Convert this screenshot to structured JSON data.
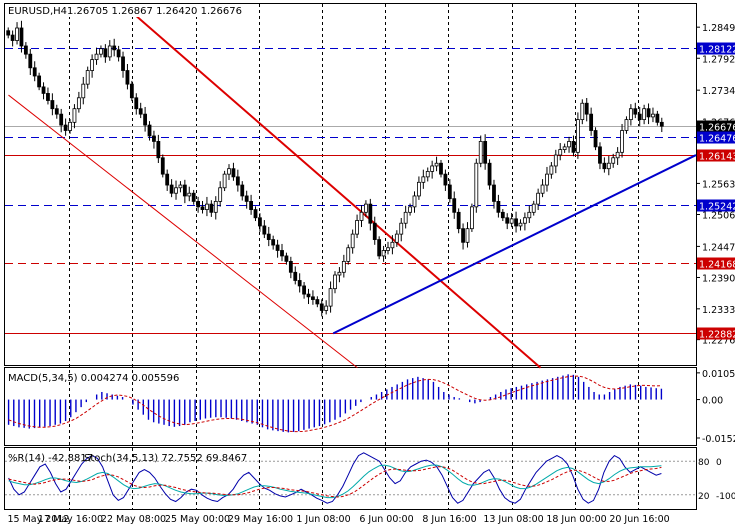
{
  "header": {
    "symbol": "EURUSD,H4",
    "ohlc": "1.26705 1.26867 1.26420 1.26676",
    "macd_label": "MACD(5,34,5) 0.004274 0.005596",
    "wpr_label": "%R(14) -42.8817",
    "stoch_label": "Stoch(34,5,13) 72.7552 69.8467"
  },
  "colors": {
    "candles": "#000000",
    "grid": "#000000",
    "blue_level": "#0000cc",
    "red_level": "#cc0000",
    "trend_red": "#dd0000",
    "trend_blue": "#0000cc",
    "macd_hist": "#0000cc",
    "macd_signal": "#cc0000",
    "wpr": "#0000aa",
    "stoch_main": "#00aaaa",
    "stoch_signal": "#cc0000"
  },
  "chart_data": [
    {
      "type": "candlestick",
      "panel": "price",
      "ylim": [
        1.223,
        1.2892
      ],
      "price_ticks": [
        "1.28495",
        "1.27925",
        "1.27340",
        "1.26765",
        "1.26200",
        "1.25630",
        "1.25060",
        "1.24475",
        "1.23905",
        "1.23330",
        "1.22765"
      ],
      "x_ticks": [
        "15 May 2012",
        "17 May 16:00",
        "22 May 08:00",
        "25 May 00:00",
        "29 May 16:00",
        "1 Jun 08:00",
        "6 Jun 00:00",
        "8 Jun 16:00",
        "13 Jun 08:00",
        "18 Jun 00:00",
        "20 Jun 16:00"
      ],
      "levels": [
        {
          "label": "1.28122",
          "value": 1.28122,
          "color": "blue",
          "style": "dashed"
        },
        {
          "label": "1.26676",
          "value": 1.26676,
          "color": "current",
          "style": "solid"
        },
        {
          "label": "1.26476",
          "value": 1.26476,
          "color": "blue",
          "style": "dashed"
        },
        {
          "label": "1.26143",
          "value": 1.26143,
          "color": "red",
          "style": "solid"
        },
        {
          "label": "1.25242",
          "value": 1.25242,
          "color": "blue",
          "style": "dashed"
        },
        {
          "label": "1.24168",
          "value": 1.24168,
          "color": "red",
          "style": "dashed"
        },
        {
          "label": "1.22882",
          "value": 1.22882,
          "color": "red",
          "style": "solid"
        }
      ],
      "close_path": [
        1.2835,
        1.2825,
        1.2848,
        1.2815,
        1.28,
        1.2775,
        1.276,
        1.274,
        1.2728,
        1.2715,
        1.27,
        1.269,
        1.267,
        1.266,
        1.2675,
        1.27,
        1.272,
        1.2745,
        1.277,
        1.279,
        1.28,
        1.281,
        1.2795,
        1.2815,
        1.2808,
        1.2795,
        1.277,
        1.2745,
        1.272,
        1.27,
        1.269,
        1.267,
        1.265,
        1.264,
        1.261,
        1.258,
        1.256,
        1.2545,
        1.2555,
        1.256,
        1.254,
        1.2545,
        1.253,
        1.252,
        1.2515,
        1.2525,
        1.251,
        1.253,
        1.2555,
        1.258,
        1.259,
        1.2575,
        1.256,
        1.254,
        1.253,
        1.2515,
        1.25,
        1.2485,
        1.247,
        1.246,
        1.245,
        1.244,
        1.243,
        1.242,
        1.24,
        1.2385,
        1.2375,
        1.236,
        1.2355,
        1.235,
        1.2342,
        1.233,
        1.2338,
        1.237,
        1.2395,
        1.24,
        1.242,
        1.2445,
        1.247,
        1.2495,
        1.251,
        1.2525,
        1.249,
        1.246,
        1.243,
        1.244,
        1.2445,
        1.2455,
        1.247,
        1.249,
        1.251,
        1.252,
        1.254,
        1.2565,
        1.2575,
        1.2585,
        1.2595,
        1.26,
        1.258,
        1.256,
        1.2535,
        1.251,
        1.248,
        1.2455,
        1.248,
        1.252,
        1.26,
        1.264,
        1.26,
        1.256,
        1.253,
        1.251,
        1.25,
        1.249,
        1.2498,
        1.2485,
        1.249,
        1.25,
        1.251,
        1.2525,
        1.2545,
        1.256,
        1.258,
        1.2595,
        1.2615,
        1.2625,
        1.263,
        1.264,
        1.262,
        1.268,
        1.271,
        1.269,
        1.266,
        1.263,
        1.26,
        1.259,
        1.26,
        1.261,
        1.262,
        1.266,
        1.268,
        1.27,
        1.269,
        1.268,
        1.27,
        1.2685,
        1.269,
        1.2675,
        1.2668
      ],
      "trendlines": [
        {
          "color": "red",
          "from": [
            0.17,
            1.2892
          ],
          "to": [
            0.775,
            1.2225
          ]
        },
        {
          "color": "red",
          "from": [
            0.005,
            1.2725
          ],
          "to": [
            0.51,
            1.2225
          ]
        },
        {
          "color": "blue",
          "from": [
            0.475,
            1.2288
          ],
          "to": [
            1.0,
            1.2615
          ]
        }
      ]
    },
    {
      "type": "bar",
      "panel": "macd",
      "title": "MACD(5,34,5) 0.004274 0.005596",
      "ylim": [
        -0.018,
        0.0125
      ],
      "y_ticks": [
        "0.010575",
        "0.00",
        "-0.015223"
      ],
      "series": [
        {
          "name": "MACD",
          "values": [
            -0.01,
            -0.0105,
            -0.011,
            -0.0112,
            -0.0115,
            -0.0113,
            -0.011,
            -0.0108,
            -0.0105,
            -0.01,
            -0.0095,
            -0.0085,
            -0.007,
            -0.005,
            -0.003,
            -0.001,
            0.0,
            0.002,
            0.003,
            0.0025,
            0.002,
            0.0015,
            0.001,
            0.0,
            -0.002,
            -0.004,
            -0.006,
            -0.008,
            -0.009,
            -0.0095,
            -0.01,
            -0.0105,
            -0.0108,
            -0.0105,
            -0.01,
            -0.009,
            -0.0085,
            -0.008,
            -0.0075,
            -0.0072,
            -0.007,
            -0.007,
            -0.0072,
            -0.0075,
            -0.008,
            -0.0085,
            -0.009,
            -0.0095,
            -0.01,
            -0.011,
            -0.0118,
            -0.0122,
            -0.0125,
            -0.0128,
            -0.013,
            -0.0128,
            -0.0125,
            -0.012,
            -0.0115,
            -0.011,
            -0.0105,
            -0.0098,
            -0.009,
            -0.008,
            -0.007,
            -0.0055,
            -0.004,
            -0.0025,
            -0.001,
            0.0,
            0.001,
            0.002,
            0.003,
            0.004,
            0.005,
            0.006,
            0.007,
            0.008,
            0.0085,
            0.009,
            0.0085,
            0.008,
            0.007,
            0.005,
            0.003,
            0.002,
            0.001,
            0.0005,
            0.0,
            -0.001,
            -0.0015,
            -0.001,
            0.0,
            0.001,
            0.002,
            0.003,
            0.004,
            0.0045,
            0.005,
            0.0055,
            0.006,
            0.0065,
            0.007,
            0.0075,
            0.008,
            0.0085,
            0.009,
            0.0095,
            0.01,
            0.0098,
            0.009,
            0.007,
            0.005,
            0.003,
            0.002,
            0.002,
            0.003,
            0.004,
            0.005,
            0.0055,
            0.006,
            0.0058,
            0.0055,
            0.005,
            0.0048,
            0.0045,
            0.0043
          ]
        },
        {
          "name": "signal",
          "values": [
            -0.008,
            -0.0088,
            -0.0095,
            -0.01,
            -0.0105,
            -0.0108,
            -0.011,
            -0.011,
            -0.0108,
            -0.0105,
            -0.01,
            -0.0093,
            -0.0085,
            -0.0075,
            -0.0062,
            -0.0048,
            -0.0033,
            -0.0018,
            -0.0005,
            0.0008,
            0.0015,
            0.0018,
            0.0016,
            0.0012,
            0.0004,
            -0.0008,
            -0.0022,
            -0.0038,
            -0.0052,
            -0.0065,
            -0.0076,
            -0.0085,
            -0.0092,
            -0.0097,
            -0.0099,
            -0.0098,
            -0.0095,
            -0.0091,
            -0.0087,
            -0.0082,
            -0.0079,
            -0.0076,
            -0.0075,
            -0.0075,
            -0.0076,
            -0.0078,
            -0.0082,
            -0.0087,
            -0.0092,
            -0.0098,
            -0.0105,
            -0.0111,
            -0.0117,
            -0.0121,
            -0.0125,
            -0.0127,
            -0.0127,
            -0.0126,
            -0.0123,
            -0.0119,
            -0.0115,
            -0.011,
            -0.0104,
            -0.0097,
            -0.0089,
            -0.008,
            -0.0069,
            -0.0057,
            -0.0044,
            -0.0031,
            -0.0018,
            -0.0006,
            0.0006,
            0.0017,
            0.0028,
            0.0038,
            0.0048,
            0.0058,
            0.0066,
            0.0073,
            0.0078,
            0.008,
            0.0079,
            0.0074,
            0.0066,
            0.0056,
            0.0045,
            0.0034,
            0.0024,
            0.0014,
            0.0005,
            -0.0001,
            -0.0003,
            -0.0001,
            0.0004,
            0.0011,
            0.0019,
            0.0027,
            0.0034,
            0.0041,
            0.0048,
            0.0054,
            0.006,
            0.0066,
            0.0072,
            0.0077,
            0.0082,
            0.0087,
            0.0091,
            0.0093,
            0.0093,
            0.0089,
            0.008,
            0.0069,
            0.0057,
            0.0048,
            0.0043,
            0.0042,
            0.0044,
            0.0047,
            0.0051,
            0.0054,
            0.0056,
            0.0056,
            0.0055,
            0.0054,
            0.0055
          ]
        }
      ]
    },
    {
      "type": "line",
      "panel": "oscillators",
      "ylim": [
        -100,
        0
      ],
      "y_ticks_right": [
        "80",
        "20"
      ],
      "y_ticks_left": [
        "0",
        "-100"
      ],
      "series": [
        {
          "name": "%R(14)",
          "values": [
            -50,
            -70,
            -80,
            -75,
            -60,
            -45,
            -30,
            -25,
            -40,
            -60,
            -75,
            -70,
            -55,
            -40,
            -25,
            -15,
            -10,
            -15,
            -30,
            -55,
            -80,
            -90,
            -85,
            -70,
            -55,
            -40,
            -35,
            -40,
            -50,
            -65,
            -78,
            -88,
            -92,
            -85,
            -75,
            -70,
            -72,
            -80,
            -86,
            -90,
            -92,
            -85,
            -80,
            -70,
            -55,
            -45,
            -40,
            -50,
            -60,
            -68,
            -72,
            -78,
            -82,
            -84,
            -80,
            -76,
            -70,
            -75,
            -80,
            -86,
            -90,
            -95,
            -92,
            -80,
            -65,
            -45,
            -25,
            -10,
            -5,
            -10,
            -15,
            -20,
            -35,
            -50,
            -60,
            -55,
            -40,
            -30,
            -25,
            -20,
            -18,
            -22,
            -30,
            -45,
            -65,
            -85,
            -95,
            -90,
            -75,
            -60,
            -50,
            -40,
            -35,
            -50,
            -70,
            -85,
            -92,
            -95,
            -88,
            -70,
            -55,
            -40,
            -30,
            -20,
            -15,
            -10,
            -15,
            -25,
            -45,
            -70,
            -88,
            -95,
            -90,
            -70,
            -40,
            -20,
            -10,
            -15,
            -30,
            -40,
            -35,
            -30,
            -35,
            -40,
            -45,
            -42
          ]
        },
        {
          "name": "Stoch(34,5,13)",
          "values": [
            -55,
            -58,
            -60,
            -62,
            -62,
            -60,
            -57,
            -53,
            -50,
            -50,
            -52,
            -55,
            -57,
            -58,
            -56,
            -52,
            -47,
            -42,
            -40,
            -42,
            -48,
            -55,
            -62,
            -67,
            -69,
            -68,
            -65,
            -62,
            -60,
            -61,
            -64,
            -68,
            -72,
            -75,
            -77,
            -78,
            -78,
            -77,
            -77,
            -78,
            -80,
            -81,
            -81,
            -80,
            -78,
            -74,
            -70,
            -66,
            -64,
            -64,
            -65,
            -67,
            -70,
            -72,
            -74,
            -75,
            -76,
            -77,
            -79,
            -81,
            -83,
            -85,
            -85,
            -83,
            -79,
            -73,
            -65,
            -56,
            -47,
            -39,
            -33,
            -28,
            -27,
            -29,
            -33,
            -37,
            -39,
            -38,
            -35,
            -32,
            -29,
            -27,
            -27,
            -30,
            -36,
            -43,
            -51,
            -58,
            -62,
            -63,
            -61,
            -57,
            -53,
            -51,
            -52,
            -56,
            -61,
            -66,
            -69,
            -69,
            -66,
            -61,
            -55,
            -49,
            -43,
            -37,
            -33,
            -31,
            -33,
            -39,
            -46,
            -53,
            -58,
            -60,
            -57,
            -51,
            -44,
            -38,
            -34,
            -32,
            -31,
            -30,
            -30,
            -30,
            -29,
            -28
          ]
        },
        {
          "name": "signal",
          "values": [
            -52,
            -54,
            -56,
            -58,
            -60,
            -61,
            -60,
            -58,
            -55,
            -53,
            -52,
            -52,
            -53,
            -55,
            -56,
            -55,
            -53,
            -49,
            -46,
            -44,
            -45,
            -48,
            -53,
            -58,
            -63,
            -66,
            -67,
            -66,
            -64,
            -63,
            -63,
            -65,
            -67,
            -70,
            -72,
            -74,
            -75,
            -76,
            -77,
            -77,
            -78,
            -79,
            -80,
            -80,
            -80,
            -78,
            -76,
            -73,
            -70,
            -68,
            -67,
            -67,
            -68,
            -69,
            -71,
            -72,
            -73,
            -74,
            -76,
            -78,
            -80,
            -82,
            -83,
            -84,
            -83,
            -80,
            -76,
            -70,
            -63,
            -56,
            -49,
            -43,
            -38,
            -35,
            -34,
            -35,
            -36,
            -37,
            -37,
            -36,
            -34,
            -32,
            -30,
            -30,
            -32,
            -36,
            -42,
            -48,
            -54,
            -58,
            -60,
            -60,
            -58,
            -56,
            -54,
            -54,
            -56,
            -59,
            -62,
            -64,
            -65,
            -64,
            -61,
            -57,
            -53,
            -48,
            -43,
            -39,
            -36,
            -36,
            -39,
            -43,
            -48,
            -53,
            -56,
            -56,
            -54,
            -50,
            -46,
            -42,
            -39,
            -37,
            -35,
            -34,
            -33,
            -31
          ]
        }
      ]
    }
  ]
}
